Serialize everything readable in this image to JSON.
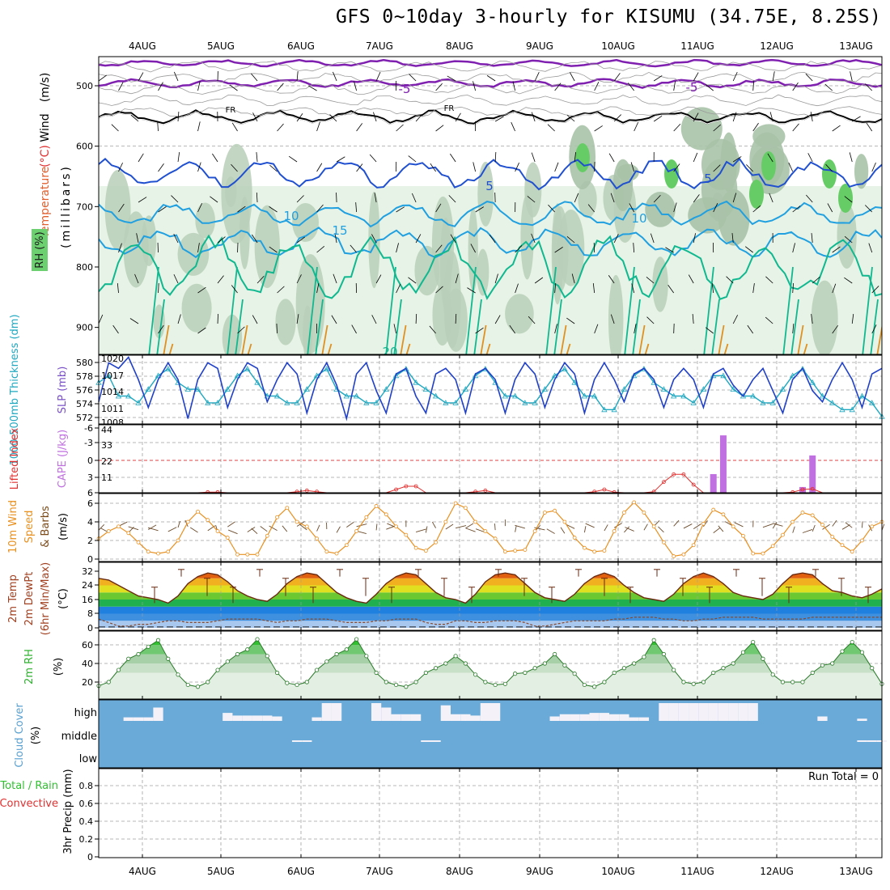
{
  "title": "GFS 0~10day 3-hourly for KISUMU (34.75E, 8.25S)",
  "colors": {
    "wind": "#000000",
    "temperature": "#e06030",
    "rh": "#30c030",
    "thickness": "#20a8c0",
    "slp": "#2040c8",
    "lifted": "#e03030",
    "cape": "#c070e0",
    "wind10": "#e89020",
    "rh2m": "#30c030",
    "cloud": "#5aa0d0",
    "precip_total": "#30c030",
    "precip_conv": "#e03030",
    "iso_purple": "#8020b0",
    "iso_blue": "#2050d0",
    "iso_cyan": "#20a0e0",
    "iso_teal": "#10b890",
    "iso_orange": "#e09020",
    "iso_red": "#e04020"
  },
  "dates": [
    "4AUG",
    "5AUG",
    "6AUG",
    "7AUG",
    "8AUG",
    "9AUG",
    "10AUG",
    "11AUG",
    "12AUG",
    "13AUG"
  ],
  "panels": {
    "upper": {
      "ylabel_parts": [
        {
          "text": "Wind",
          "color": "#000000"
        },
        {
          "text": "(m/s)",
          "color": "#000000"
        },
        {
          "text": "(°C)",
          "color": "#e03030"
        },
        {
          "text": "Temperature",
          "color": "#e06030"
        }
      ],
      "ylabel_mb": "(millibars)",
      "rh_label": "RH (%)",
      "yticks": [
        "500",
        "600",
        "700",
        "800",
        "900"
      ],
      "contour_labels": [
        {
          "text": "-5",
          "color": "#8020b0"
        },
        {
          "text": "-5",
          "color": "#8020b0"
        },
        {
          "text": "FR",
          "color": "#000000"
        },
        {
          "text": "FR",
          "color": "#000000"
        },
        {
          "text": "5",
          "color": "#2050d0"
        },
        {
          "text": "5",
          "color": "#2050d0"
        },
        {
          "text": "10",
          "color": "#20a0e0"
        },
        {
          "text": "10",
          "color": "#20a0e0"
        },
        {
          "text": "15",
          "color": "#20a0e0"
        },
        {
          "text": "20",
          "color": "#10b890"
        }
      ]
    },
    "slp": {
      "ylabel_left": "1000-500mb Thickness (dm)",
      "ylabel_right": "SLP (mb)",
      "left_ticks": [
        "580",
        "578",
        "576",
        "574",
        "572"
      ],
      "right_ticks": [
        "1020",
        "1017",
        "1014",
        "1011",
        "1008"
      ]
    },
    "cape": {
      "ylabel_left": "Lifted Index",
      "ylabel_right": "CAPE (J/kg)",
      "left_ticks": [
        "-6",
        "-3",
        "0",
        "3",
        "6"
      ],
      "right_ticks": [
        "44",
        "33",
        "22",
        "11"
      ]
    },
    "wind10": {
      "ylabel": [
        "10m Wind",
        "Speed",
        "& Barbs"
      ],
      "unit": "(m/s)",
      "ticks": [
        "6",
        "4",
        "2",
        "0"
      ]
    },
    "temp2m": {
      "ylabel": [
        "2m Temp",
        "2m DewPt",
        "(6hr Min/Max)"
      ],
      "unit": "(°C)",
      "ticks": [
        "32",
        "24",
        "16",
        "8",
        "0"
      ]
    },
    "rh2m": {
      "ylabel": "2m RH",
      "unit": "(%)",
      "ticks": [
        "60",
        "40",
        "20"
      ]
    },
    "cloud": {
      "ylabel": "Cloud Cover",
      "unit": "(%)",
      "ticks": [
        "high",
        "middle",
        "low"
      ]
    },
    "precip": {
      "ylabel": "3hr Precip (mm)",
      "legend_total": "Total / Rain",
      "legend_conv": "Convective",
      "run_total": "Run Total = 0",
      "ticks": [
        "0.8",
        "0.6",
        "0.4",
        "0.2",
        "0"
      ]
    }
  },
  "chart_data": [
    {
      "type": "line",
      "panel": "sea level pressure and 1000-500mb thickness",
      "series": [
        {
          "name": "SLP (mb)",
          "axis": "right",
          "values": [
            1012,
            1019,
            1018,
            1020,
            1016,
            1011,
            1016,
            1019,
            1016,
            1009,
            1016,
            1019,
            1018,
            1011,
            1016,
            1019,
            1018,
            1012,
            1016,
            1019,
            1017,
            1010,
            1016,
            1019,
            1015,
            1009,
            1017,
            1019,
            1014,
            1010,
            1017,
            1018,
            1013,
            1010,
            1017,
            1018,
            1016,
            1010,
            1017,
            1018,
            1016,
            1010,
            1016,
            1019,
            1017,
            1011,
            1016,
            1019,
            1017,
            1010,
            1016,
            1019,
            1016,
            1012,
            1017,
            1018,
            1016,
            1011,
            1016,
            1018,
            1016,
            1011,
            1017,
            1018,
            1015,
            1013,
            1016,
            1018,
            1014,
            1010,
            1016,
            1018,
            1014,
            1012,
            1016,
            1019,
            1016,
            1011,
            1017,
            1018
          ]
        },
        {
          "name": "1000-500mb Thickness (dm)",
          "axis": "left",
          "values": [
            577,
            578,
            575,
            575,
            574,
            576,
            578,
            579,
            577,
            576,
            576,
            574,
            574,
            576,
            578,
            579,
            577,
            575,
            575,
            574,
            574,
            576,
            578,
            579,
            576,
            575,
            575,
            574,
            574,
            576,
            578,
            579,
            577,
            576,
            575,
            574,
            574,
            576,
            578,
            579,
            577,
            575,
            575,
            574,
            574,
            576,
            578,
            579,
            577,
            575,
            575,
            573,
            573,
            576,
            578,
            579,
            577,
            576,
            575,
            575,
            574,
            576,
            578,
            578,
            576,
            575,
            575,
            574,
            574,
            576,
            578,
            579,
            577,
            575,
            574,
            573,
            573,
            575,
            574,
            572
          ]
        }
      ],
      "left_range": [
        572,
        580
      ],
      "right_range": [
        1008,
        1020
      ]
    },
    {
      "type": "bar",
      "panel": "CAPE and Lifted Index",
      "series": [
        {
          "name": "CAPE (J/kg)",
          "bar_index": [
            62,
            63,
            71,
            72
          ],
          "values": [
            13,
            40,
            4,
            26
          ]
        },
        {
          "name": "Lifted Index",
          "values": [
            6,
            6,
            6,
            6,
            6,
            6,
            6,
            6,
            6,
            6,
            6,
            5.9,
            5.9,
            6,
            6,
            6,
            6,
            6,
            6,
            6,
            5.8,
            5.6,
            5.8,
            6,
            6,
            6,
            6,
            6,
            6,
            6,
            5.4,
            4.8,
            4.8,
            6,
            6,
            6,
            6,
            6,
            5.8,
            5.6,
            6,
            6,
            6,
            6,
            6,
            6,
            6,
            6,
            6,
            6,
            5.8,
            5.4,
            5.9,
            6,
            6,
            6,
            5.8,
            4.0,
            2.6,
            2.6,
            4.5,
            6,
            6,
            6,
            6,
            6,
            6,
            6,
            6,
            6,
            5.9,
            5.4,
            5.3,
            6,
            6,
            6,
            6,
            6,
            6,
            6
          ]
        }
      ],
      "left_range": [
        -6,
        6
      ],
      "right_range": [
        0,
        44
      ]
    },
    {
      "type": "line",
      "panel": "10m wind speed",
      "series": [
        {
          "name": "10m Wind Speed (m/s)",
          "values": [
            2.2,
            3.0,
            3.5,
            2.8,
            1.8,
            0.8,
            0.6,
            0.8,
            2.0,
            4.0,
            5.1,
            4.2,
            3.0,
            2.3,
            0.5,
            0.5,
            0.5,
            2.5,
            4.5,
            5.5,
            4.0,
            3.5,
            2.2,
            0.8,
            0.6,
            1.5,
            3.0,
            4.5,
            5.7,
            4.8,
            3.5,
            2.6,
            1.2,
            0.9,
            1.8,
            4.0,
            6.0,
            5.5,
            4.0,
            3.0,
            2.2,
            0.8,
            0.9,
            1.0,
            3.0,
            5.0,
            5.2,
            4.0,
            2.3,
            1.2,
            0.8,
            0.9,
            3.0,
            5.0,
            6.1,
            5.0,
            3.5,
            1.8,
            0.3,
            0.5,
            1.5,
            3.8,
            5.3,
            4.8,
            3.5,
            2.5,
            0.6,
            0.6,
            1.4,
            2.6,
            4.0,
            5.0,
            4.7,
            3.7,
            2.4,
            1.5,
            0.8,
            2.0,
            3.5,
            4.0
          ]
        }
      ],
      "ylim": [
        0,
        6.8
      ]
    },
    {
      "type": "area",
      "panel": "2m temperature and dewpoint",
      "series": [
        {
          "name": "2m Temp (°C)",
          "values": [
            28,
            27,
            24,
            21,
            18,
            17,
            16,
            14,
            18,
            25,
            29,
            31,
            30,
            26,
            21,
            18,
            16,
            15,
            19,
            25,
            29,
            31,
            30,
            25,
            20,
            17,
            15,
            14,
            19,
            25,
            29,
            31,
            30,
            25,
            20,
            17,
            16,
            14,
            19,
            26,
            30,
            31,
            30,
            25,
            20,
            17,
            16,
            15,
            19,
            25,
            29,
            31,
            29,
            24,
            20,
            17,
            16,
            15,
            19,
            25,
            29,
            31,
            29,
            25,
            20,
            18,
            17,
            16,
            19,
            25,
            30,
            31,
            30,
            25,
            21,
            20,
            18,
            17,
            19,
            22
          ]
        },
        {
          "name": "2m DewPt (°C)",
          "values": [
            5,
            3,
            1,
            1,
            2,
            2,
            3,
            4,
            4,
            3,
            3,
            3,
            4,
            5,
            5,
            5,
            5,
            4,
            3,
            4,
            4,
            5,
            5,
            5,
            4,
            3,
            3,
            3,
            4,
            4,
            5,
            5,
            5,
            3,
            2,
            2,
            4,
            4,
            3,
            3,
            4,
            4,
            4,
            3,
            1,
            1,
            2,
            3,
            4,
            4,
            4,
            4,
            5,
            5,
            6,
            6,
            6,
            5,
            5,
            4,
            4,
            5,
            5,
            6,
            6,
            6,
            6,
            5,
            5,
            5,
            5,
            5,
            6,
            6,
            6,
            6,
            6,
            6,
            6,
            6
          ]
        }
      ],
      "ylim": [
        0,
        34
      ]
    },
    {
      "type": "area",
      "panel": "2m relative humidity",
      "series": [
        {
          "name": "2m RH (%)",
          "values": [
            16,
            20,
            33,
            45,
            50,
            58,
            65,
            45,
            28,
            17,
            15,
            20,
            33,
            42,
            50,
            55,
            66,
            48,
            30,
            19,
            17,
            20,
            33,
            42,
            50,
            55,
            66,
            48,
            30,
            20,
            17,
            15,
            20,
            30,
            35,
            40,
            48,
            40,
            28,
            20,
            17,
            18,
            29,
            30,
            35,
            40,
            50,
            38,
            29,
            17,
            15,
            20,
            30,
            35,
            40,
            47,
            65,
            50,
            33,
            20,
            18,
            20,
            30,
            35,
            40,
            52,
            63,
            45,
            28,
            20,
            20,
            20,
            30,
            38,
            40,
            53,
            63,
            52,
            35,
            18
          ]
        }
      ],
      "ylim": [
        10,
        70
      ]
    },
    {
      "type": "bar",
      "panel": "cloud cover",
      "series": [
        {
          "name": "high cloud cover (%)",
          "values": [
            0,
            0,
            0,
            8,
            8,
            8,
            30,
            0,
            0,
            0,
            0,
            0,
            0,
            18,
            12,
            12,
            12,
            12,
            10,
            0,
            0,
            0,
            8,
            40,
            40,
            0,
            0,
            0,
            40,
            30,
            15,
            15,
            15,
            0,
            0,
            35,
            15,
            15,
            12,
            40,
            40,
            0,
            0,
            0,
            0,
            0,
            10,
            15,
            15,
            15,
            18,
            18,
            15,
            15,
            8,
            8,
            0,
            40,
            40,
            40,
            40,
            40,
            40,
            40,
            40,
            40,
            40,
            0,
            0,
            0,
            0,
            0,
            0,
            10,
            0,
            0,
            0,
            5,
            0,
            0
          ]
        }
      ],
      "ylim": [
        0,
        100
      ]
    },
    {
      "type": "bar",
      "panel": "3hr precipitation",
      "series": [
        {
          "name": "Total / Rain (mm)",
          "values": []
        },
        {
          "name": "Convective (mm)",
          "values": []
        }
      ],
      "ylim": [
        0,
        0.9
      ]
    }
  ]
}
